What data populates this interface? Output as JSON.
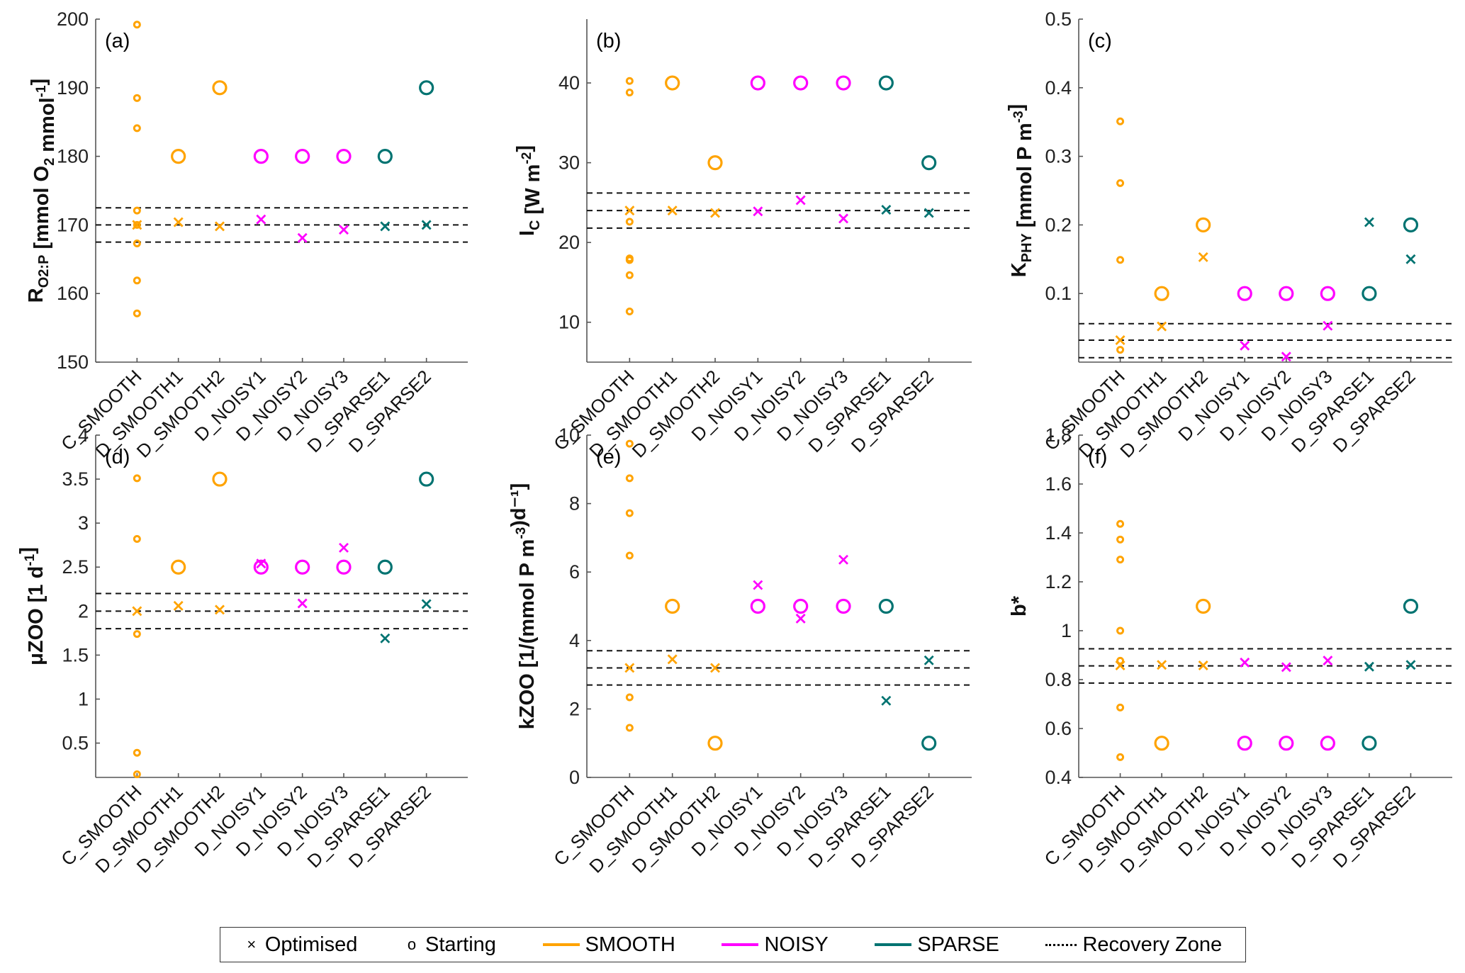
{
  "legend": {
    "items": [
      {
        "symbol": "×",
        "label": "Optimised",
        "kind": "marker"
      },
      {
        "symbol": "o",
        "label": "Starting",
        "kind": "marker"
      },
      {
        "label": "SMOOTH",
        "kind": "line",
        "color": "#FFA300"
      },
      {
        "label": "NOISY",
        "kind": "line",
        "color": "#FF00FF"
      },
      {
        "label": "SPARSE",
        "kind": "line",
        "color": "#007371"
      },
      {
        "label": "Recovery Zone",
        "kind": "dashed",
        "color": "#000000"
      }
    ]
  },
  "colors": {
    "SMOOTH": "#FFA300",
    "NOISY": "#FF00FF",
    "SPARSE": "#007371",
    "recovery": "#000000"
  },
  "chart_data": [
    {
      "type": "scatter",
      "panel": "(a)",
      "ylabel": {
        "main": "R",
        "sub": "O2:P",
        "rest": " [mmol O",
        "sub2": "2",
        "rest2": " mmol",
        "sup": "-1",
        "end": "]"
      },
      "ylim": [
        150,
        200
      ],
      "yticks": [
        150,
        160,
        170,
        180,
        190,
        200
      ],
      "categories": [
        "C_SMOOTH",
        "D_SMOOTH1",
        "D_SMOOTH2",
        "D_NOISY1",
        "D_NOISY2",
        "D_NOISY3",
        "D_SPARSE1",
        "D_SPARSE2"
      ],
      "groups": [
        "SMOOTH",
        "SMOOTH",
        "SMOOTH",
        "NOISY",
        "NOISY",
        "NOISY",
        "SPARSE",
        "SPARSE"
      ],
      "starting": [
        null,
        180,
        190,
        180,
        180,
        180,
        180,
        190
      ],
      "c_smooth_starting": [
        199.2,
        188.5,
        184.1,
        172.1,
        170.0,
        167.3,
        161.9,
        157.1
      ],
      "optimised": [
        170.0,
        170.4,
        169.8,
        170.8,
        168.1,
        169.3,
        169.8,
        170.0
      ],
      "recovery_zone": [
        167.5,
        170.0,
        172.5
      ],
      "grid": false
    },
    {
      "type": "scatter",
      "panel": "(b)",
      "ylabel": {
        "main": "I",
        "sub": "C",
        "rest": " [W m",
        "sub2": "",
        "rest2": "",
        "sup": "-2",
        "end": "]"
      },
      "ylim": [
        5,
        48
      ],
      "yticks": [
        10,
        20,
        30,
        40
      ],
      "categories": [
        "C_SMOOTH",
        "D_SMOOTH1",
        "D_SMOOTH2",
        "D_NOISY1",
        "D_NOISY2",
        "D_NOISY3",
        "D_SPARSE1",
        "D_SPARSE2"
      ],
      "groups": [
        "SMOOTH",
        "SMOOTH",
        "SMOOTH",
        "NOISY",
        "NOISY",
        "NOISY",
        "SPARSE",
        "SPARSE"
      ],
      "starting": [
        null,
        40,
        30,
        40,
        40,
        40,
        40,
        30
      ],
      "c_smooth_starting": [
        40.25,
        38.8,
        22.6,
        18.0,
        17.8,
        15.9,
        11.35
      ],
      "optimised": [
        24.0,
        24.0,
        23.7,
        23.9,
        25.3,
        23.0,
        24.1,
        23.7
      ],
      "recovery_zone": [
        21.8,
        24.0,
        26.2
      ],
      "grid": false
    },
    {
      "type": "scatter",
      "panel": "(c)",
      "ylabel": {
        "main": "K",
        "sub": "PHY",
        "rest": " [mmol P m",
        "sub2": "",
        "rest2": "",
        "sup": "-3",
        "end": "]"
      },
      "ylim": [
        0,
        0.5
      ],
      "yticks": [
        0.1,
        0.2,
        0.3,
        0.4,
        0.5
      ],
      "categories": [
        "C_SMOOTH",
        "D_SMOOTH1",
        "D_SMOOTH2",
        "D_NOISY1",
        "D_NOISY2",
        "D_NOISY3",
        "D_SPARSE1",
        "D_SPARSE2"
      ],
      "groups": [
        "SMOOTH",
        "SMOOTH",
        "SMOOTH",
        "NOISY",
        "NOISY",
        "NOISY",
        "SPARSE",
        "SPARSE"
      ],
      "starting": [
        null,
        0.1,
        0.2,
        0.1,
        0.1,
        0.1,
        0.1,
        0.2
      ],
      "c_smooth_starting": [
        0.351,
        0.261,
        0.149,
        0.018
      ],
      "optimised": [
        0.032,
        0.052,
        0.153,
        0.024,
        0.008,
        0.053,
        0.204,
        0.15
      ],
      "recovery_zone": [
        0.0065,
        0.032,
        0.056
      ],
      "grid": false
    },
    {
      "type": "scatter",
      "panel": "(d)",
      "ylabel": {
        "main": "μZOO",
        "sub": "",
        "rest": " [1 d",
        "sub2": "",
        "rest2": "",
        "sup": "-1",
        "end": "]"
      },
      "ylim": [
        0.11,
        4
      ],
      "yticks": [
        0.5,
        1,
        1.5,
        2,
        2.5,
        3,
        3.5,
        4
      ],
      "categories": [
        "C_SMOOTH",
        "D_SMOOTH1",
        "D_SMOOTH2",
        "D_NOISY1",
        "D_NOISY2",
        "D_NOISY3",
        "D_SPARSE1",
        "D_SPARSE2"
      ],
      "groups": [
        "SMOOTH",
        "SMOOTH",
        "SMOOTH",
        "NOISY",
        "NOISY",
        "NOISY",
        "SPARSE",
        "SPARSE"
      ],
      "starting": [
        null,
        2.5,
        3.5,
        2.5,
        2.5,
        2.5,
        2.5,
        3.5
      ],
      "c_smooth_starting": [
        3.51,
        2.82,
        1.74,
        0.39,
        0.145
      ],
      "optimised": [
        2.0,
        2.06,
        2.016,
        2.54,
        2.087,
        2.72,
        1.69,
        2.08
      ],
      "recovery_zone": [
        1.8,
        2.0,
        2.2
      ],
      "grid": false
    },
    {
      "type": "scatter",
      "panel": "(e)",
      "ylabel": {
        "main": "kZOO",
        "sub": "",
        "rest": " [1/(mmol P m",
        "sub2": "",
        "rest2": "",
        "sup": "-3",
        "end": ")d⁻¹]"
      },
      "ylim": [
        0,
        10
      ],
      "yticks": [
        0,
        2,
        4,
        6,
        8,
        10
      ],
      "categories": [
        "C_SMOOTH",
        "D_SMOOTH1",
        "D_SMOOTH2",
        "D_NOISY1",
        "D_NOISY2",
        "D_NOISY3",
        "D_SPARSE1",
        "D_SPARSE2"
      ],
      "groups": [
        "SMOOTH",
        "SMOOTH",
        "SMOOTH",
        "NOISY",
        "NOISY",
        "NOISY",
        "SPARSE",
        "SPARSE"
      ],
      "starting": [
        null,
        5,
        1,
        5,
        5,
        5,
        5,
        1
      ],
      "c_smooth_starting": [
        9.75,
        8.74,
        7.72,
        6.48,
        2.34,
        1.45
      ],
      "optimised": [
        3.2,
        3.45,
        3.2,
        5.62,
        4.64,
        6.36,
        2.24,
        3.42
      ],
      "recovery_zone": [
        2.7,
        3.2,
        3.7
      ],
      "grid": false
    },
    {
      "type": "scatter",
      "panel": "(f)",
      "ylabel": {
        "main": "b*",
        "sub": "",
        "rest": "",
        "sub2": "",
        "rest2": "",
        "sup": "",
        "end": ""
      },
      "ylim": [
        0.4,
        1.8
      ],
      "yticks": [
        0.4,
        0.6,
        0.8,
        1,
        1.2,
        1.4,
        1.6,
        1.8
      ],
      "categories": [
        "C_SMOOTH",
        "D_SMOOTH1",
        "D_SMOOTH2",
        "D_NOISY1",
        "D_NOISY2",
        "D_NOISY3",
        "D_SPARSE1",
        "D_SPARSE2"
      ],
      "groups": [
        "SMOOTH",
        "SMOOTH",
        "SMOOTH",
        "NOISY",
        "NOISY",
        "NOISY",
        "SPARSE",
        "SPARSE"
      ],
      "starting": [
        null,
        0.54,
        1.1,
        0.54,
        0.54,
        0.54,
        0.54,
        1.1
      ],
      "c_smooth_starting": [
        1.437,
        1.373,
        1.291,
        1.0,
        0.877,
        0.686,
        0.483
      ],
      "optimised": [
        0.858,
        0.86,
        0.858,
        0.87,
        0.851,
        0.878,
        0.853,
        0.86
      ],
      "recovery_zone": [
        0.786,
        0.856,
        0.926
      ],
      "grid": false
    }
  ]
}
